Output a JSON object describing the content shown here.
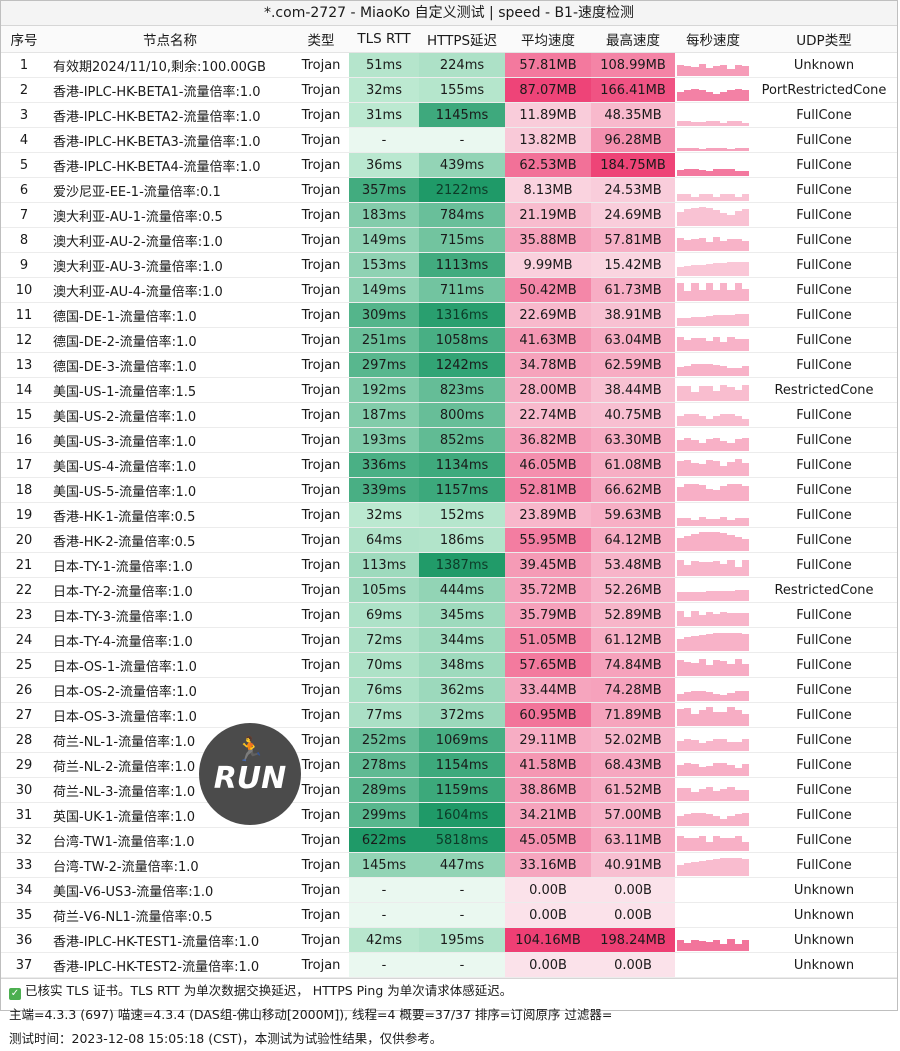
{
  "title": "*.com-2727 - MiaoKo 自定义测试 | speed - B1-速度检测",
  "columns": [
    "序号",
    "节点名称",
    "类型",
    "TLS RTT",
    "HTTPS延迟",
    "平均速度",
    "最高速度",
    "每秒速度",
    "UDP类型"
  ],
  "rows": [
    {
      "idx": "1",
      "name": "有效期2024/11/10,剩余:100.00GB",
      "type": "Trojan",
      "tls": "51ms",
      "https": "224ms",
      "avg": "57.81MB",
      "max": "108.99MB",
      "udp": "Unknown"
    },
    {
      "idx": "2",
      "name": "香港-IPLC-HK-BETA1-流量倍率:1.0",
      "type": "Trojan",
      "tls": "32ms",
      "https": "155ms",
      "avg": "87.07MB",
      "max": "166.41MB",
      "udp": "PortRestrictedCone"
    },
    {
      "idx": "3",
      "name": "香港-IPLC-HK-BETA2-流量倍率:1.0",
      "type": "Trojan",
      "tls": "31ms",
      "https": "1145ms",
      "avg": "11.89MB",
      "max": "48.35MB",
      "udp": "FullCone"
    },
    {
      "idx": "4",
      "name": "香港-IPLC-HK-BETA3-流量倍率:1.0",
      "type": "Trojan",
      "tls": "-",
      "https": "-",
      "avg": "13.82MB",
      "max": "96.28MB",
      "udp": "FullCone"
    },
    {
      "idx": "5",
      "name": "香港-IPLC-HK-BETA4-流量倍率:1.0",
      "type": "Trojan",
      "tls": "36ms",
      "https": "439ms",
      "avg": "62.53MB",
      "max": "184.75MB",
      "udp": "FullCone"
    },
    {
      "idx": "6",
      "name": "爱沙尼亚-EE-1-流量倍率:0.1",
      "type": "Trojan",
      "tls": "357ms",
      "https": "2122ms",
      "avg": "8.13MB",
      "max": "24.53MB",
      "udp": "FullCone"
    },
    {
      "idx": "7",
      "name": "澳大利亚-AU-1-流量倍率:0.5",
      "type": "Trojan",
      "tls": "183ms",
      "https": "784ms",
      "avg": "21.19MB",
      "max": "24.69MB",
      "udp": "FullCone"
    },
    {
      "idx": "8",
      "name": "澳大利亚-AU-2-流量倍率:1.0",
      "type": "Trojan",
      "tls": "149ms",
      "https": "715ms",
      "avg": "35.88MB",
      "max": "57.81MB",
      "udp": "FullCone"
    },
    {
      "idx": "9",
      "name": "澳大利亚-AU-3-流量倍率:1.0",
      "type": "Trojan",
      "tls": "153ms",
      "https": "1113ms",
      "avg": "9.99MB",
      "max": "15.42MB",
      "udp": "FullCone"
    },
    {
      "idx": "10",
      "name": "澳大利亚-AU-4-流量倍率:1.0",
      "type": "Trojan",
      "tls": "149ms",
      "https": "711ms",
      "avg": "50.42MB",
      "max": "61.73MB",
      "udp": "FullCone"
    },
    {
      "idx": "11",
      "name": "德国-DE-1-流量倍率:1.0",
      "type": "Trojan",
      "tls": "309ms",
      "https": "1316ms",
      "avg": "22.69MB",
      "max": "38.91MB",
      "udp": "FullCone"
    },
    {
      "idx": "12",
      "name": "德国-DE-2-流量倍率:1.0",
      "type": "Trojan",
      "tls": "251ms",
      "https": "1058ms",
      "avg": "41.63MB",
      "max": "63.04MB",
      "udp": "FullCone"
    },
    {
      "idx": "13",
      "name": "德国-DE-3-流量倍率:1.0",
      "type": "Trojan",
      "tls": "297ms",
      "https": "1242ms",
      "avg": "34.78MB",
      "max": "62.59MB",
      "udp": "FullCone"
    },
    {
      "idx": "14",
      "name": "美国-US-1-流量倍率:1.5",
      "type": "Trojan",
      "tls": "192ms",
      "https": "823ms",
      "avg": "28.00MB",
      "max": "38.44MB",
      "udp": "RestrictedCone"
    },
    {
      "idx": "15",
      "name": "美国-US-2-流量倍率:1.0",
      "type": "Trojan",
      "tls": "187ms",
      "https": "800ms",
      "avg": "22.74MB",
      "max": "40.75MB",
      "udp": "FullCone"
    },
    {
      "idx": "16",
      "name": "美国-US-3-流量倍率:1.0",
      "type": "Trojan",
      "tls": "193ms",
      "https": "852ms",
      "avg": "36.82MB",
      "max": "63.30MB",
      "udp": "FullCone"
    },
    {
      "idx": "17",
      "name": "美国-US-4-流量倍率:1.0",
      "type": "Trojan",
      "tls": "336ms",
      "https": "1134ms",
      "avg": "46.05MB",
      "max": "61.08MB",
      "udp": "FullCone"
    },
    {
      "idx": "18",
      "name": "美国-US-5-流量倍率:1.0",
      "type": "Trojan",
      "tls": "339ms",
      "https": "1157ms",
      "avg": "52.81MB",
      "max": "66.62MB",
      "udp": "FullCone"
    },
    {
      "idx": "19",
      "name": "香港-HK-1-流量倍率:0.5",
      "type": "Trojan",
      "tls": "32ms",
      "https": "152ms",
      "avg": "23.89MB",
      "max": "59.63MB",
      "udp": "FullCone"
    },
    {
      "idx": "20",
      "name": "香港-HK-2-流量倍率:0.5",
      "type": "Trojan",
      "tls": "64ms",
      "https": "186ms",
      "avg": "55.95MB",
      "max": "64.12MB",
      "udp": "FullCone"
    },
    {
      "idx": "21",
      "name": "日本-TY-1-流量倍率:1.0",
      "type": "Trojan",
      "tls": "113ms",
      "https": "1387ms",
      "avg": "39.45MB",
      "max": "53.48MB",
      "udp": "FullCone"
    },
    {
      "idx": "22",
      "name": "日本-TY-2-流量倍率:1.0",
      "type": "Trojan",
      "tls": "105ms",
      "https": "444ms",
      "avg": "35.72MB",
      "max": "52.26MB",
      "udp": "RestrictedCone"
    },
    {
      "idx": "23",
      "name": "日本-TY-3-流量倍率:1.0",
      "type": "Trojan",
      "tls": "69ms",
      "https": "345ms",
      "avg": "35.79MB",
      "max": "52.89MB",
      "udp": "FullCone"
    },
    {
      "idx": "24",
      "name": "日本-TY-4-流量倍率:1.0",
      "type": "Trojan",
      "tls": "72ms",
      "https": "344ms",
      "avg": "51.05MB",
      "max": "61.12MB",
      "udp": "FullCone"
    },
    {
      "idx": "25",
      "name": "日本-OS-1-流量倍率:1.0",
      "type": "Trojan",
      "tls": "70ms",
      "https": "348ms",
      "avg": "57.65MB",
      "max": "74.84MB",
      "udp": "FullCone"
    },
    {
      "idx": "26",
      "name": "日本-OS-2-流量倍率:1.0",
      "type": "Trojan",
      "tls": "76ms",
      "https": "362ms",
      "avg": "33.44MB",
      "max": "74.28MB",
      "udp": "FullCone"
    },
    {
      "idx": "27",
      "name": "日本-OS-3-流量倍率:1.0",
      "type": "Trojan",
      "tls": "77ms",
      "https": "372ms",
      "avg": "60.95MB",
      "max": "71.89MB",
      "udp": "FullCone"
    },
    {
      "idx": "28",
      "name": "荷兰-NL-1-流量倍率:1.0",
      "type": "Trojan",
      "tls": "252ms",
      "https": "1069ms",
      "avg": "29.11MB",
      "max": "52.02MB",
      "udp": "FullCone"
    },
    {
      "idx": "29",
      "name": "荷兰-NL-2-流量倍率:1.0",
      "type": "Trojan",
      "tls": "278ms",
      "https": "1154ms",
      "avg": "41.58MB",
      "max": "68.43MB",
      "udp": "FullCone"
    },
    {
      "idx": "30",
      "name": "荷兰-NL-3-流量倍率:1.0",
      "type": "Trojan",
      "tls": "289ms",
      "https": "1159ms",
      "avg": "38.86MB",
      "max": "61.52MB",
      "udp": "FullCone"
    },
    {
      "idx": "31",
      "name": "英国-UK-1-流量倍率:1.0",
      "type": "Trojan",
      "tls": "299ms",
      "https": "1604ms",
      "avg": "34.21MB",
      "max": "57.00MB",
      "udp": "FullCone"
    },
    {
      "idx": "32",
      "name": "台湾-TW1-流量倍率:1.0",
      "type": "Trojan",
      "tls": "622ms",
      "https": "5818ms",
      "avg": "45.05MB",
      "max": "63.11MB",
      "udp": "FullCone"
    },
    {
      "idx": "33",
      "name": "台湾-TW-2-流量倍率:1.0",
      "type": "Trojan",
      "tls": "145ms",
      "https": "447ms",
      "avg": "33.16MB",
      "max": "40.91MB",
      "udp": "FullCone"
    },
    {
      "idx": "34",
      "name": "美国-V6-US3-流量倍率:1.0",
      "type": "Trojan",
      "tls": "-",
      "https": "-",
      "avg": "0.00B",
      "max": "0.00B",
      "udp": "Unknown"
    },
    {
      "idx": "35",
      "name": "荷兰-V6-NL1-流量倍率:0.5",
      "type": "Trojan",
      "tls": "-",
      "https": "-",
      "avg": "0.00B",
      "max": "0.00B",
      "udp": "Unknown"
    },
    {
      "idx": "36",
      "name": "香港-IPLC-HK-TEST1-流量倍率:1.0",
      "type": "Trojan",
      "tls": "42ms",
      "https": "195ms",
      "avg": "104.16MB",
      "max": "198.24MB",
      "udp": "Unknown"
    },
    {
      "idx": "37",
      "name": "香港-IPLC-HK-TEST2-流量倍率:1.0",
      "type": "Trojan",
      "tls": "-",
      "https": "-",
      "avg": "0.00B",
      "max": "0.00B",
      "udp": "Unknown"
    }
  ],
  "footer": {
    "line1": "已核实 TLS 证书。TLS RTT 为单次数据交换延迟， HTTPS Ping 为单次请求体感延迟。",
    "line2": "主端=4.3.3 (697) 喵速=4.3.4 (DAS组-佛山移动[2000M]), 线程=4 概要=37/37 排序=订阅原序 过滤器=",
    "line3": "测试时间：2023-12-08 15:05:18 (CST)，本测试为试验性结果，仅供参考。"
  },
  "logo": {
    "text": "RUN",
    "icon": "runner-icon"
  },
  "colors": {
    "green_light": "#c8efd9",
    "green_dark": "#1f9a68",
    "pink_light": "#fbe2ea",
    "pink_dark": "#ee3f74",
    "spark": "#f2729a"
  }
}
